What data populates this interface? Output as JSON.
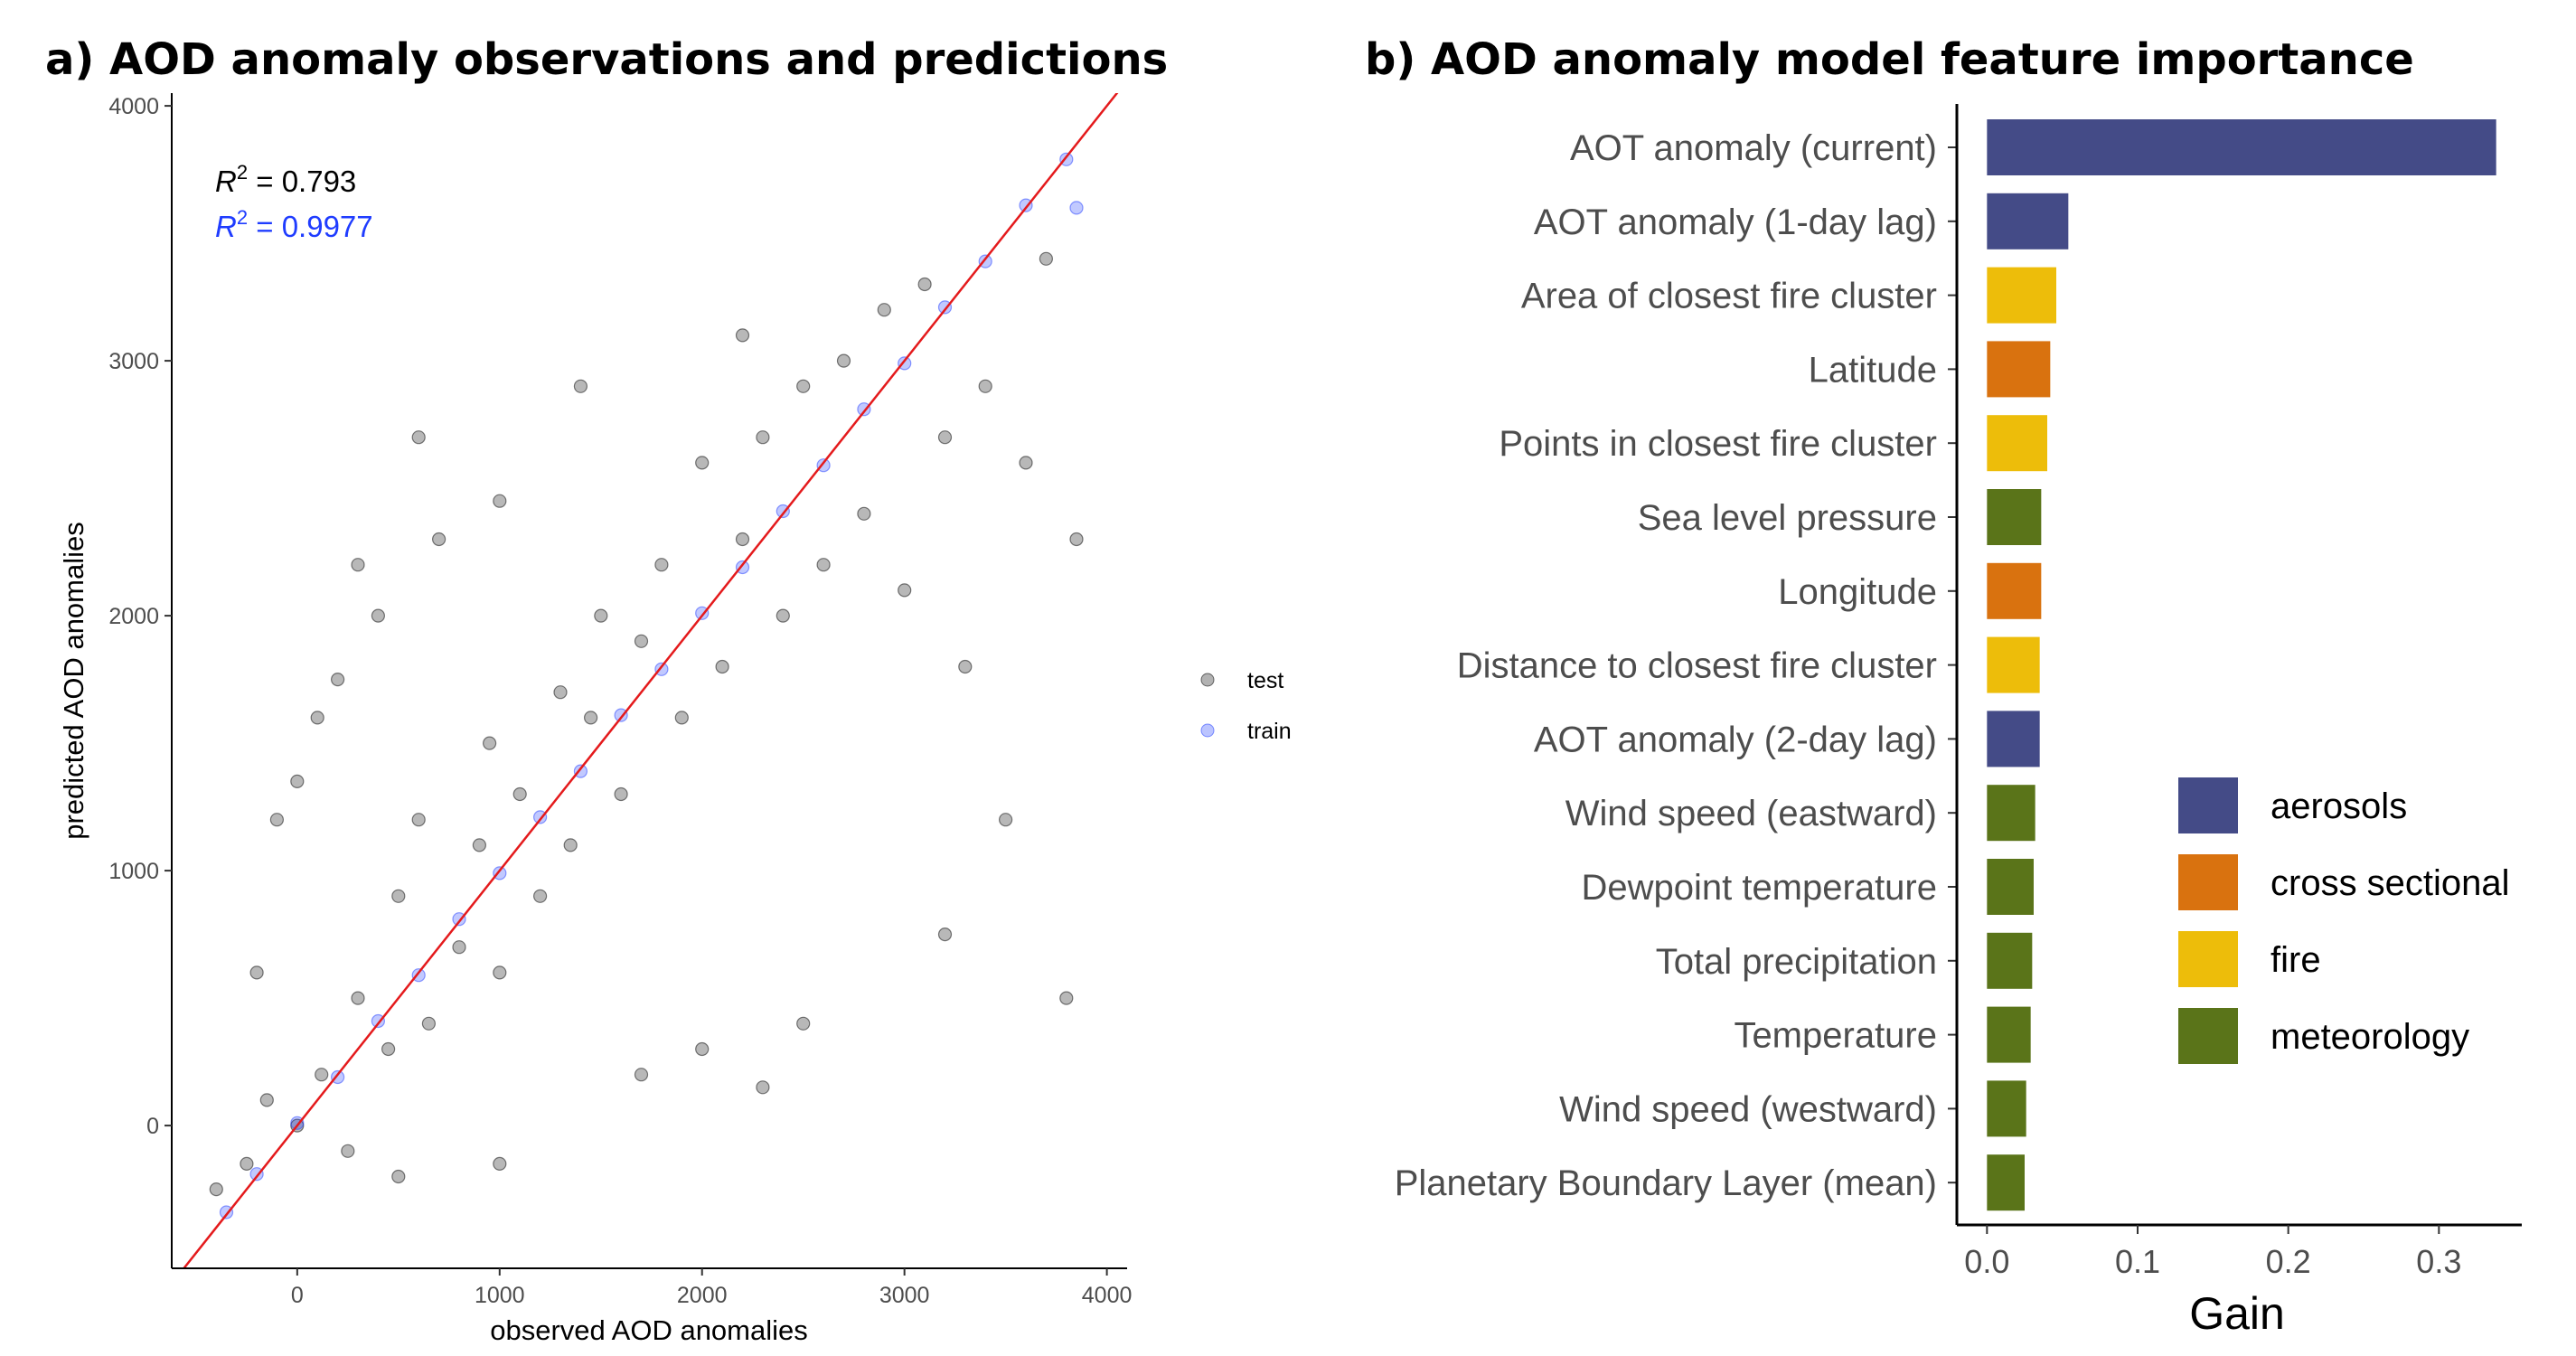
{
  "chart_data": [
    {
      "type": "scatter",
      "title": "a) AOD anomaly observations and predictions",
      "xlabel": "observed AOD anomalies",
      "ylabel": "predicted AOD anomalies",
      "xlim": [
        -620,
        4100
      ],
      "ylim": [
        -560,
        4050
      ],
      "xticks": [
        0,
        1000,
        2000,
        3000,
        4000
      ],
      "yticks": [
        0,
        1000,
        2000,
        3000,
        4000
      ],
      "xtick_labels": [
        "0",
        "1000",
        "2000",
        "3000",
        "4000"
      ],
      "ytick_labels": [
        "0",
        "1000",
        "2000",
        "3000",
        "4000"
      ],
      "reference_line": {
        "slope": 1,
        "intercept": 0,
        "color": "#e41a1c"
      },
      "annotations": [
        {
          "label": "R",
          "sup": "2",
          "value": " = 0.793",
          "color": "#000000"
        },
        {
          "label": "R",
          "sup": "2",
          "value": " = 0.9977",
          "color": "#1f3cff"
        }
      ],
      "legend_position": "right",
      "series": [
        {
          "name": "test",
          "color": "#000000",
          "marker": "circle",
          "points": [
            [
              -400,
              -250
            ],
            [
              -250,
              -150
            ],
            [
              -150,
              100
            ],
            [
              0,
              0
            ],
            [
              120,
              200
            ],
            [
              250,
              -100
            ],
            [
              300,
              500
            ],
            [
              450,
              300
            ],
            [
              500,
              900
            ],
            [
              600,
              1200
            ],
            [
              650,
              400
            ],
            [
              800,
              700
            ],
            [
              900,
              1100
            ],
            [
              950,
              1500
            ],
            [
              1000,
              600
            ],
            [
              1100,
              1300
            ],
            [
              1200,
              900
            ],
            [
              1300,
              1700
            ],
            [
              1350,
              1100
            ],
            [
              1450,
              1600
            ],
            [
              1500,
              2000
            ],
            [
              1600,
              1300
            ],
            [
              1700,
              1900
            ],
            [
              1800,
              2200
            ],
            [
              1900,
              1600
            ],
            [
              2000,
              2600
            ],
            [
              2100,
              1800
            ],
            [
              2200,
              2300
            ],
            [
              2300,
              2700
            ],
            [
              2400,
              2000
            ],
            [
              2500,
              2900
            ],
            [
              2600,
              2200
            ],
            [
              2700,
              3000
            ],
            [
              2800,
              2400
            ],
            [
              2900,
              3200
            ],
            [
              3000,
              2100
            ],
            [
              3100,
              3300
            ],
            [
              3200,
              2700
            ],
            [
              3300,
              1800
            ],
            [
              3400,
              2900
            ],
            [
              3500,
              1200
            ],
            [
              3600,
              2600
            ],
            [
              3700,
              3400
            ],
            [
              3800,
              500
            ],
            [
              3850,
              2300
            ],
            [
              200,
              1750
            ],
            [
              300,
              2200
            ],
            [
              700,
              2300
            ],
            [
              600,
              2700
            ],
            [
              1000,
              2450
            ],
            [
              1400,
              2900
            ],
            [
              2200,
              3100
            ],
            [
              2500,
              400
            ],
            [
              3200,
              750
            ],
            [
              2300,
              150
            ],
            [
              2000,
              300
            ],
            [
              1700,
              200
            ],
            [
              1000,
              -150
            ],
            [
              500,
              -200
            ],
            [
              -200,
              600
            ],
            [
              -100,
              1200
            ],
            [
              0,
              1350
            ],
            [
              100,
              1600
            ],
            [
              400,
              2000
            ]
          ]
        },
        {
          "name": "train",
          "color": "#1f3cff",
          "marker": "circle",
          "points": [
            [
              -350,
              -340
            ],
            [
              -200,
              -190
            ],
            [
              0,
              10
            ],
            [
              200,
              190
            ],
            [
              400,
              410
            ],
            [
              600,
              590
            ],
            [
              800,
              810
            ],
            [
              1000,
              990
            ],
            [
              1200,
              1210
            ],
            [
              1400,
              1390
            ],
            [
              1600,
              1610
            ],
            [
              1800,
              1790
            ],
            [
              2000,
              2010
            ],
            [
              2200,
              2190
            ],
            [
              2400,
              2410
            ],
            [
              2600,
              2590
            ],
            [
              2800,
              2810
            ],
            [
              3000,
              2990
            ],
            [
              3200,
              3210
            ],
            [
              3400,
              3390
            ],
            [
              3600,
              3610
            ],
            [
              3800,
              3790
            ],
            [
              3850,
              3600
            ]
          ]
        }
      ]
    },
    {
      "type": "bar",
      "orientation": "horizontal",
      "title": "b) AOD anomaly model feature importance",
      "xlabel": "Gain",
      "ylabel": "",
      "xlim": [
        -0.02,
        0.355
      ],
      "xticks": [
        0.0,
        0.1,
        0.2,
        0.3
      ],
      "xtick_labels": [
        "0.0",
        "0.1",
        "0.2",
        "0.3"
      ],
      "legend_position": "bottom-right",
      "group_colors": {
        "aerosols": "#444b87",
        "cross sectional": "#d9720f",
        "fire": "#edbd0a",
        "meteorology": "#5a7419"
      },
      "legend": [
        {
          "label": "aerosols",
          "color": "#444b87"
        },
        {
          "label": "cross sectional",
          "color": "#d9720f"
        },
        {
          "label": "fire",
          "color": "#edbd0a"
        },
        {
          "label": "meteorology",
          "color": "#5a7419"
        }
      ],
      "bars": [
        {
          "label": "AOT anomaly (current)",
          "value": 0.338,
          "group": "aerosols"
        },
        {
          "label": "AOT anomaly (1-day lag)",
          "value": 0.054,
          "group": "aerosols"
        },
        {
          "label": "Area of closest fire cluster",
          "value": 0.046,
          "group": "fire"
        },
        {
          "label": "Latitude",
          "value": 0.042,
          "group": "cross sectional"
        },
        {
          "label": "Points in closest fire cluster",
          "value": 0.04,
          "group": "fire"
        },
        {
          "label": "Sea level pressure",
          "value": 0.036,
          "group": "meteorology"
        },
        {
          "label": "Longitude",
          "value": 0.036,
          "group": "cross sectional"
        },
        {
          "label": "Distance to closest fire cluster",
          "value": 0.035,
          "group": "fire"
        },
        {
          "label": "AOT anomaly (2-day lag)",
          "value": 0.035,
          "group": "aerosols"
        },
        {
          "label": "Wind speed (eastward)",
          "value": 0.032,
          "group": "meteorology"
        },
        {
          "label": "Dewpoint temperature",
          "value": 0.031,
          "group": "meteorology"
        },
        {
          "label": "Total precipitation",
          "value": 0.03,
          "group": "meteorology"
        },
        {
          "label": "Temperature",
          "value": 0.029,
          "group": "meteorology"
        },
        {
          "label": "Wind speed (westward)",
          "value": 0.026,
          "group": "meteorology"
        },
        {
          "label": "Planetary Boundary Layer (mean)",
          "value": 0.025,
          "group": "meteorology"
        }
      ]
    }
  ]
}
